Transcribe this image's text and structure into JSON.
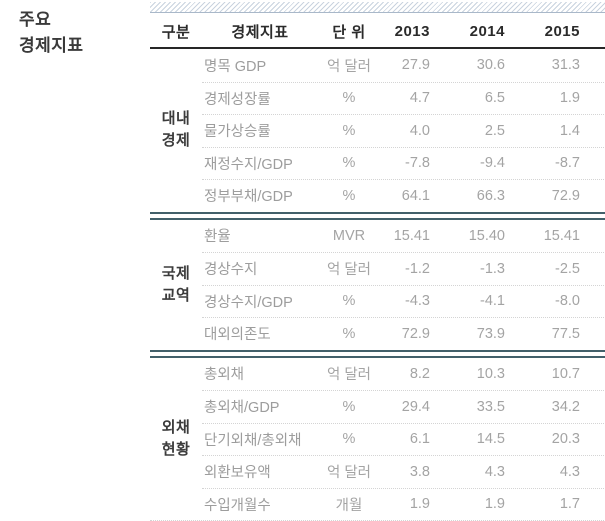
{
  "title": {
    "line1": "주요",
    "line2": "경제지표"
  },
  "table": {
    "headers": [
      "구분",
      "경제지표",
      "단 위",
      "2013",
      "2014",
      "2015"
    ],
    "sections": [
      {
        "category_id": "domestic-economy",
        "category_lines": [
          "대내",
          "경제"
        ],
        "rows": [
          {
            "label": "명목 GDP",
            "unit": "억 달러",
            "values": [
              "27.9",
              "30.6",
              "31.3"
            ]
          },
          {
            "label": "경제성장률",
            "unit": "%",
            "values": [
              "4.7",
              "6.5",
              "1.9"
            ]
          },
          {
            "label": "물가상승률",
            "unit": "%",
            "values": [
              "4.0",
              "2.5",
              "1.4"
            ]
          },
          {
            "label": "재정수지/GDP",
            "unit": "%",
            "values": [
              "-7.8",
              "-9.4",
              "-8.7"
            ]
          },
          {
            "label": "정부부채/GDP",
            "unit": "%",
            "values": [
              "64.1",
              "66.3",
              "72.9"
            ]
          }
        ]
      },
      {
        "category_id": "international-trade",
        "category_lines": [
          "국제",
          "교역"
        ],
        "rows": [
          {
            "label": "환율",
            "unit": "MVR",
            "values": [
              "15.41",
              "15.40",
              "15.41"
            ]
          },
          {
            "label": "경상수지",
            "unit": "억 달러",
            "values": [
              "-1.2",
              "-1.3",
              "-2.5"
            ]
          },
          {
            "label": "경상수지/GDP",
            "unit": "%",
            "values": [
              "-4.3",
              "-4.1",
              "-8.0"
            ]
          },
          {
            "label": "대외의존도",
            "unit": "%",
            "values": [
              "72.9",
              "73.9",
              "77.5"
            ]
          }
        ]
      },
      {
        "category_id": "external-debt",
        "category_lines": [
          "외채",
          "현황"
        ],
        "rows": [
          {
            "label": "총외채",
            "unit": "억 달러",
            "values": [
              "8.2",
              "10.3",
              "10.7"
            ]
          },
          {
            "label": "총외채/GDP",
            "unit": "%",
            "values": [
              "29.4",
              "33.5",
              "34.2"
            ]
          },
          {
            "label": "단기외채/총외채",
            "unit": "%",
            "values": [
              "6.1",
              "14.5",
              "20.3"
            ]
          },
          {
            "label": "외환보유액",
            "unit": "억 달러",
            "values": [
              "3.8",
              "4.3",
              "4.3"
            ]
          },
          {
            "label": "수입개월수",
            "unit": "개월",
            "values": [
              "1.9",
              "1.9",
              "1.7"
            ]
          }
        ]
      }
    ]
  },
  "colors": {
    "separator_teal": "#42606a",
    "header_rule": "#262626",
    "hatch_stripe": "#c9d3df",
    "hatch_edge": "#a9b8c9",
    "data_text": "#a4a4a4",
    "heading_text": "#2b2b2b",
    "row_divider": "#d4d4d4"
  }
}
